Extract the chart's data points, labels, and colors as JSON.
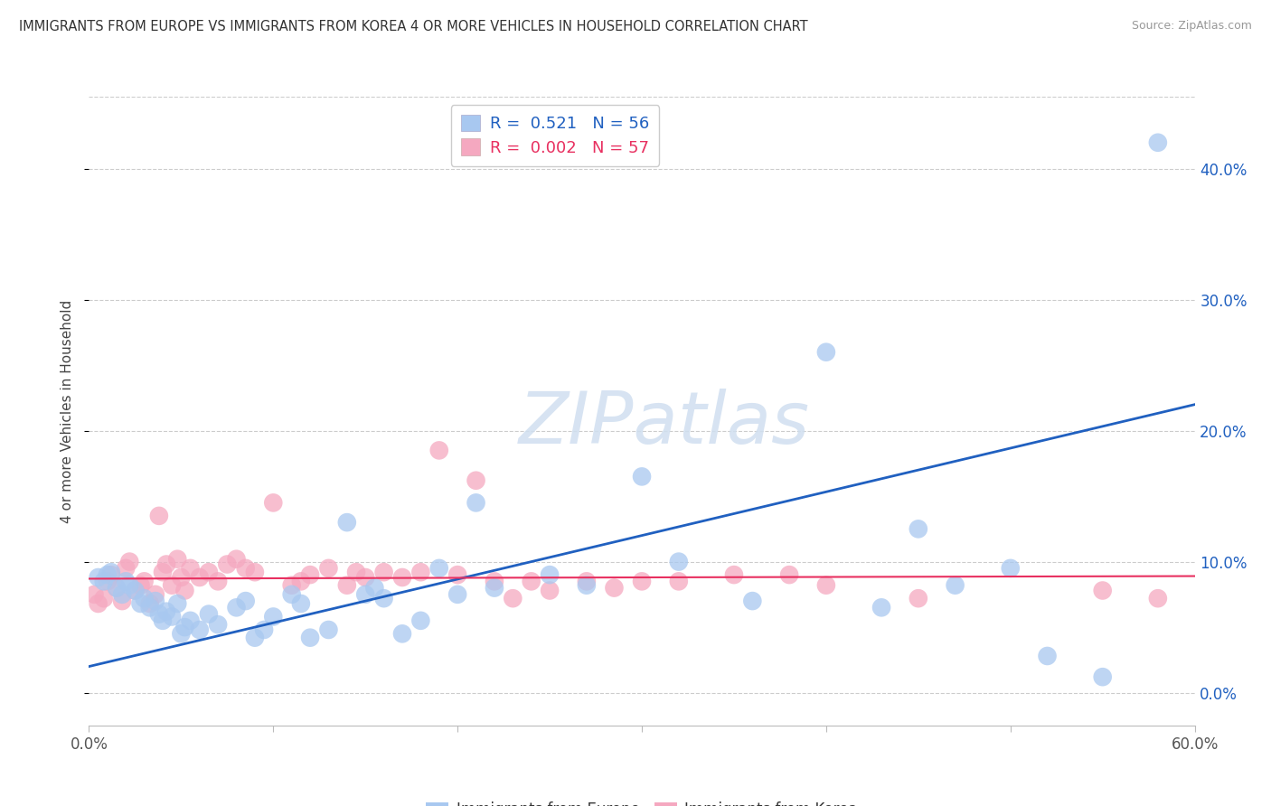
{
  "title": "IMMIGRANTS FROM EUROPE VS IMMIGRANTS FROM KOREA 4 OR MORE VEHICLES IN HOUSEHOLD CORRELATION CHART",
  "source": "Source: ZipAtlas.com",
  "ylabel": "4 or more Vehicles in Household",
  "xlim": [
    0.0,
    0.6
  ],
  "ylim": [
    -0.025,
    0.455
  ],
  "europe_R": 0.521,
  "europe_N": 56,
  "korea_R": 0.002,
  "korea_N": 57,
  "europe_color": "#A8C8F0",
  "korea_color": "#F5A8C0",
  "europe_line_color": "#2060C0",
  "korea_line_color": "#E83060",
  "watermark_color": "#D0DFF0",
  "europe_points_x": [
    0.005,
    0.008,
    0.01,
    0.012,
    0.015,
    0.018,
    0.02,
    0.022,
    0.025,
    0.028,
    0.03,
    0.033,
    0.036,
    0.038,
    0.04,
    0.042,
    0.045,
    0.048,
    0.05,
    0.052,
    0.055,
    0.06,
    0.065,
    0.07,
    0.08,
    0.085,
    0.09,
    0.095,
    0.1,
    0.11,
    0.115,
    0.12,
    0.13,
    0.14,
    0.15,
    0.155,
    0.16,
    0.17,
    0.18,
    0.19,
    0.2,
    0.21,
    0.22,
    0.25,
    0.27,
    0.3,
    0.32,
    0.36,
    0.4,
    0.43,
    0.45,
    0.47,
    0.5,
    0.52,
    0.55,
    0.58
  ],
  "europe_points_y": [
    0.088,
    0.085,
    0.09,
    0.092,
    0.08,
    0.075,
    0.085,
    0.082,
    0.078,
    0.068,
    0.072,
    0.065,
    0.07,
    0.06,
    0.055,
    0.062,
    0.058,
    0.068,
    0.045,
    0.05,
    0.055,
    0.048,
    0.06,
    0.052,
    0.065,
    0.07,
    0.042,
    0.048,
    0.058,
    0.075,
    0.068,
    0.042,
    0.048,
    0.13,
    0.075,
    0.08,
    0.072,
    0.045,
    0.055,
    0.095,
    0.075,
    0.145,
    0.08,
    0.09,
    0.082,
    0.165,
    0.1,
    0.07,
    0.26,
    0.065,
    0.125,
    0.082,
    0.095,
    0.028,
    0.012,
    0.42
  ],
  "korea_points_x": [
    0.003,
    0.005,
    0.008,
    0.01,
    0.012,
    0.015,
    0.018,
    0.02,
    0.022,
    0.025,
    0.028,
    0.03,
    0.033,
    0.036,
    0.038,
    0.04,
    0.042,
    0.045,
    0.048,
    0.05,
    0.052,
    0.055,
    0.06,
    0.065,
    0.07,
    0.075,
    0.08,
    0.085,
    0.09,
    0.1,
    0.11,
    0.115,
    0.12,
    0.13,
    0.14,
    0.145,
    0.15,
    0.16,
    0.17,
    0.18,
    0.19,
    0.2,
    0.21,
    0.22,
    0.23,
    0.24,
    0.25,
    0.27,
    0.285,
    0.3,
    0.32,
    0.35,
    0.38,
    0.4,
    0.45,
    0.55,
    0.58
  ],
  "korea_points_y": [
    0.075,
    0.068,
    0.072,
    0.085,
    0.09,
    0.08,
    0.07,
    0.095,
    0.1,
    0.078,
    0.082,
    0.085,
    0.068,
    0.075,
    0.135,
    0.092,
    0.098,
    0.082,
    0.102,
    0.088,
    0.078,
    0.095,
    0.088,
    0.092,
    0.085,
    0.098,
    0.102,
    0.095,
    0.092,
    0.145,
    0.082,
    0.085,
    0.09,
    0.095,
    0.082,
    0.092,
    0.088,
    0.092,
    0.088,
    0.092,
    0.185,
    0.09,
    0.162,
    0.085,
    0.072,
    0.085,
    0.078,
    0.085,
    0.08,
    0.085,
    0.085,
    0.09,
    0.09,
    0.082,
    0.072,
    0.078,
    0.072
  ],
  "europe_trend_x": [
    0.0,
    0.6
  ],
  "europe_trend_y": [
    0.02,
    0.22
  ],
  "korea_trend_x": [
    0.0,
    0.6
  ],
  "korea_trend_y": [
    0.087,
    0.089
  ],
  "ytick_positions": [
    0.0,
    0.1,
    0.2,
    0.3,
    0.4
  ],
  "xtick_positions": [
    0.0,
    0.1,
    0.2,
    0.3,
    0.4,
    0.5,
    0.6
  ]
}
